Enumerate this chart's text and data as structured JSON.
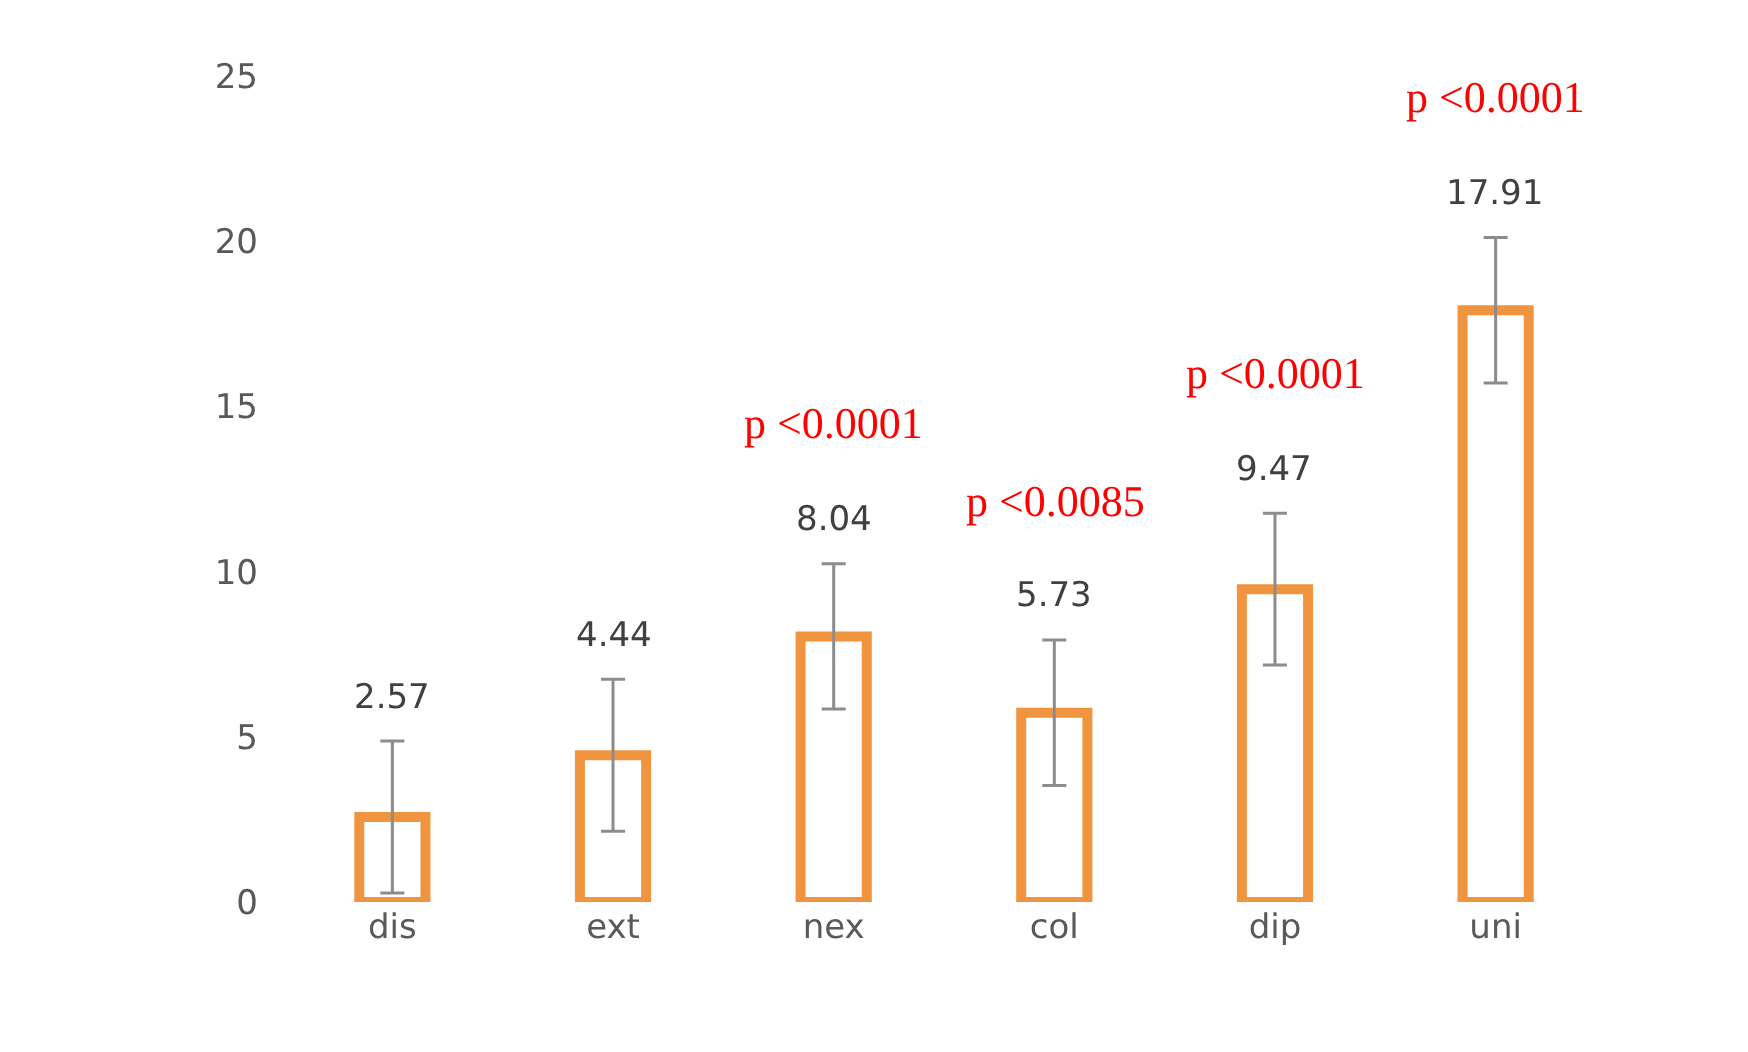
{
  "chart_data": {
    "type": "bar",
    "categories": [
      "dis",
      "ext",
      "nex",
      "col",
      "dip",
      "uni"
    ],
    "values": [
      2.57,
      4.44,
      8.04,
      5.73,
      9.47,
      17.91
    ],
    "errors": [
      2.3,
      2.3,
      2.2,
      2.2,
      2.3,
      2.2
    ],
    "color": "#f0943f",
    "data_labels": true,
    "ylim": [
      0,
      27
    ],
    "yticks": [
      0,
      5,
      10,
      15,
      20,
      25
    ],
    "annotations": [
      "p <0.0001",
      "p <0.0085",
      "p <0.0001",
      "p <0.0001"
    ]
  }
}
